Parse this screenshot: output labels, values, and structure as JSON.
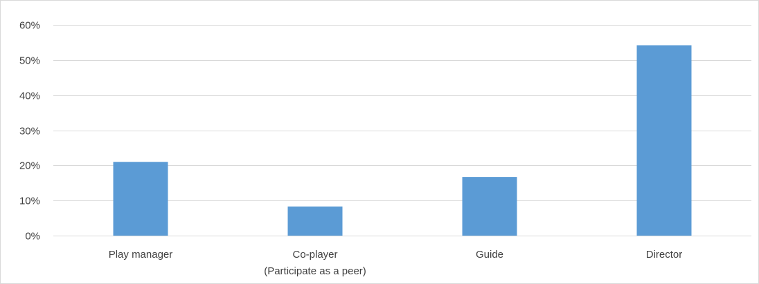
{
  "chart_data": {
    "type": "bar",
    "categories": [
      [
        "Play manager"
      ],
      [
        "Co-player",
        "(Participate as a peer)"
      ],
      [
        "Guide"
      ],
      [
        "Director"
      ]
    ],
    "series": [
      {
        "values": [
          21,
          8.3,
          16.7,
          54.2
        ],
        "color": "#5b9bd5"
      }
    ],
    "ylim": [
      0,
      60
    ],
    "yticks": [
      0,
      10,
      20,
      30,
      40,
      50,
      60
    ],
    "ytick_labels": [
      "0%",
      "10%",
      "20%",
      "30%",
      "40%",
      "50%",
      "60%"
    ],
    "grid": true,
    "legend": "none",
    "title": "",
    "xlabel": "",
    "ylabel": "",
    "colors": {
      "bar": "#5b9bd5",
      "grid": "#d9d9d9",
      "text": "#404040"
    }
  }
}
